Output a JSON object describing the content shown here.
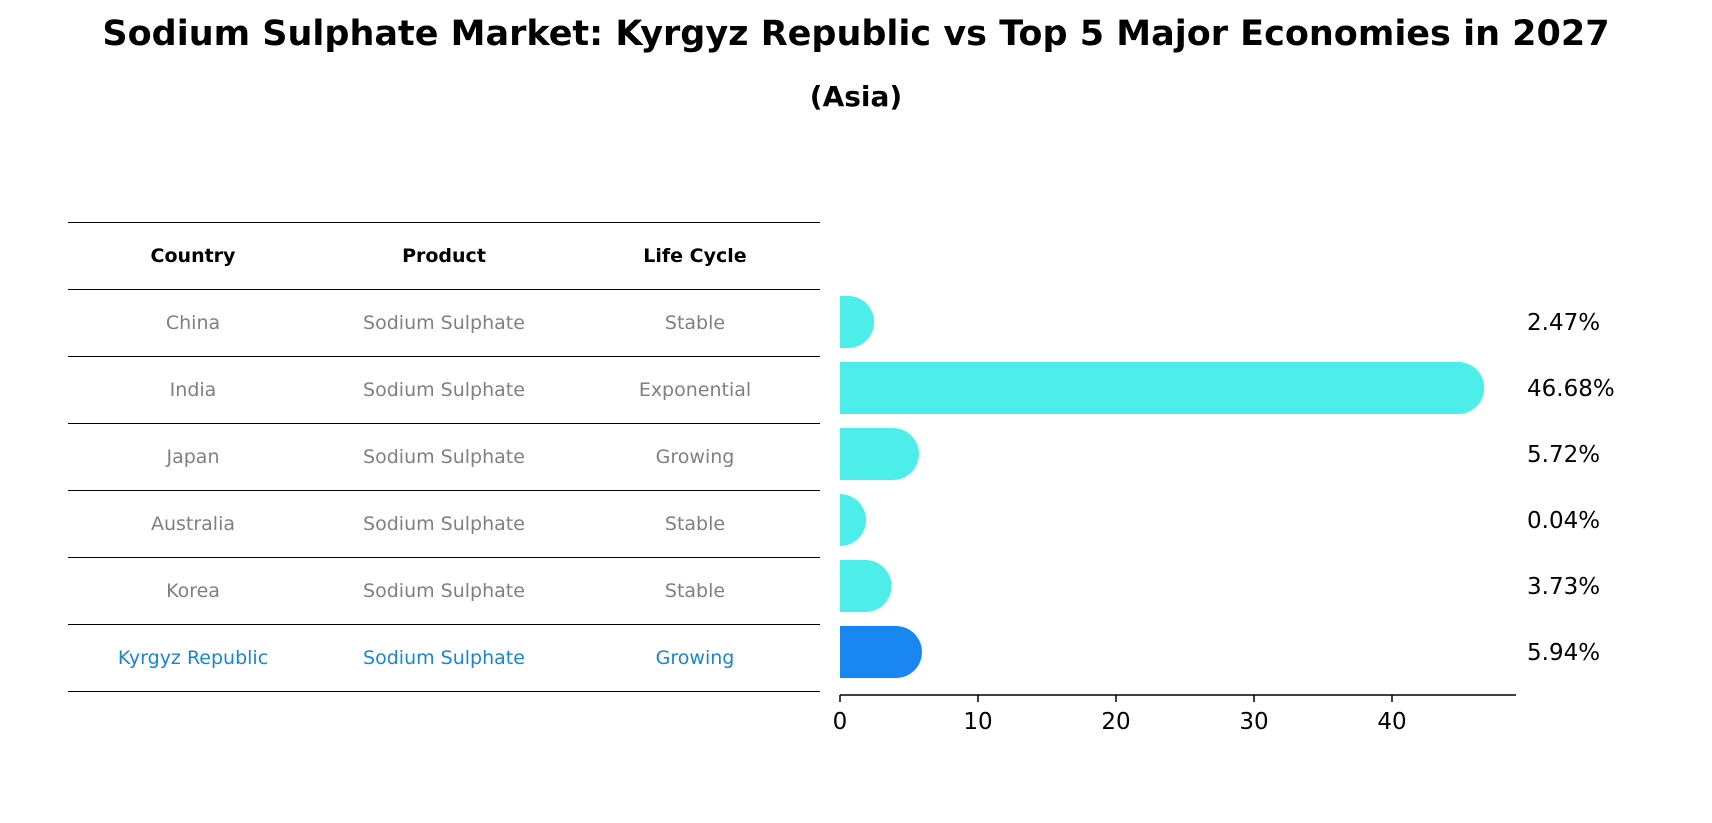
{
  "title": "Sodium Sulphate Market: Kyrgyz Republic vs Top 5 Major Economies in 2027",
  "subtitle": "(Asia)",
  "table": {
    "headers": [
      "Country",
      "Product",
      "Life Cycle"
    ],
    "rows": [
      {
        "country": "China",
        "product": "Sodium Sulphate",
        "life_cycle": "Stable"
      },
      {
        "country": "India",
        "product": "Sodium Sulphate",
        "life_cycle": "Exponential"
      },
      {
        "country": "Japan",
        "product": "Sodium Sulphate",
        "life_cycle": "Growing"
      },
      {
        "country": "Australia",
        "product": "Sodium Sulphate",
        "life_cycle": "Stable"
      },
      {
        "country": "Korea",
        "product": "Sodium Sulphate",
        "life_cycle": "Stable"
      },
      {
        "country": "Kyrgyz Republic",
        "product": "Sodium Sulphate",
        "life_cycle": "Growing"
      }
    ]
  },
  "colors": {
    "bar": "#4dede9",
    "highlight_bar": "#1a86f0",
    "highlight_text": "#1a86d0",
    "table_text": "#808080"
  },
  "chart_data": {
    "type": "bar",
    "orientation": "horizontal",
    "categories": [
      "China",
      "India",
      "Japan",
      "Australia",
      "Korea",
      "Kyrgyz Republic"
    ],
    "values": [
      2.47,
      46.68,
      5.72,
      0.04,
      3.73,
      5.94
    ],
    "value_labels": [
      "2.47%",
      "46.68%",
      "5.72%",
      "0.04%",
      "3.73%",
      "5.94%"
    ],
    "highlight": "Kyrgyz Republic",
    "xlim": [
      0,
      49
    ],
    "xticks": [
      0,
      10,
      20,
      30,
      40
    ],
    "grid": false
  }
}
